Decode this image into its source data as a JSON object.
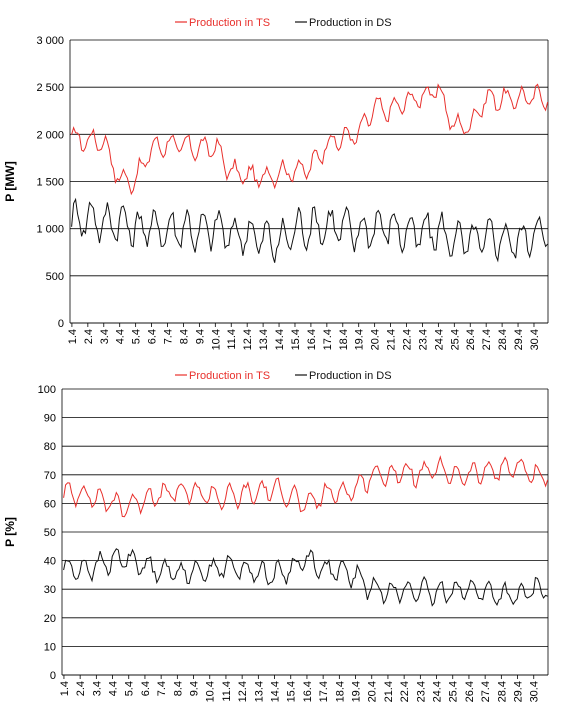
{
  "colors": {
    "ts": "#e8302c",
    "ds": "#111111",
    "grid": "#000000"
  },
  "chart_data": [
    {
      "type": "line",
      "ylabel": "P [MW]",
      "ylim": [
        0,
        3000
      ],
      "yticks": [
        0,
        500,
        1000,
        1500,
        2000,
        2500,
        3000
      ],
      "ytick_labels": [
        "0",
        "500",
        "1 000",
        "1 500",
        "2 000",
        "2 500",
        "3 000"
      ],
      "grid": true,
      "legend_position": "top-center",
      "x_categories": [
        "1.4",
        "2.4",
        "3.4",
        "4.4",
        "5.4",
        "6.4",
        "7.4",
        "8.4",
        "9.4",
        "10.4",
        "11.4",
        "12.4",
        "13.4",
        "14.4",
        "15.4",
        "16.4",
        "17.4",
        "18.4",
        "19.4",
        "20.4",
        "21.4",
        "22.4",
        "23.4",
        "24.4",
        "25.4",
        "26.4",
        "27.4",
        "28.4",
        "29.4",
        "30.4"
      ],
      "series": [
        {
          "name": "Production in TS",
          "color_key": "ts",
          "values": [
            1960,
            1930,
            1940,
            1520,
            1510,
            1850,
            1900,
            1880,
            1850,
            1870,
            1600,
            1560,
            1540,
            1600,
            1620,
            1650,
            1900,
            1960,
            2000,
            2280,
            2250,
            2350,
            2400,
            2480,
            2080,
            2100,
            2380,
            2370,
            2380,
            2400
          ]
        },
        {
          "name": "Production in DS",
          "color_key": "ds",
          "values": [
            1080,
            1130,
            1060,
            1080,
            1000,
            1020,
            980,
            1010,
            960,
            1020,
            930,
            950,
            900,
            840,
            990,
            1020,
            1030,
            1030,
            950,
            1020,
            1030,
            950,
            960,
            970,
            880,
            870,
            900,
            910,
            850,
            970
          ]
        }
      ]
    },
    {
      "type": "line",
      "ylabel": "P [%]",
      "ylim": [
        0,
        100
      ],
      "yticks": [
        0,
        10,
        20,
        30,
        40,
        50,
        60,
        70,
        80,
        90,
        100
      ],
      "ytick_labels": [
        "0",
        "10",
        "20",
        "30",
        "40",
        "50",
        "60",
        "70",
        "80",
        "90",
        "100"
      ],
      "grid": true,
      "legend_position": "top-center",
      "x_categories": [
        "1.4",
        "2.4",
        "3.4",
        "4.4",
        "5.4",
        "6.4",
        "7.4",
        "8.4",
        "9.4",
        "10.4",
        "11.4",
        "12.4",
        "13.4",
        "14.4",
        "15.4",
        "16.4",
        "17.4",
        "18.4",
        "19.4",
        "20.4",
        "21.4",
        "22.4",
        "23.4",
        "24.4",
        "25.4",
        "26.4",
        "27.4",
        "28.4",
        "29.4",
        "30.4"
      ],
      "series": [
        {
          "name": "Production in TS",
          "color_key": "ts",
          "values": [
            63,
            64,
            62,
            60,
            59,
            62,
            63,
            64,
            64,
            63,
            62,
            63,
            64,
            65,
            63,
            59,
            63,
            64,
            65,
            70,
            70,
            71,
            70,
            72,
            70,
            70,
            71,
            72,
            73,
            70
          ]
        },
        {
          "name": "Production in DS",
          "color_key": "ds",
          "values": [
            37,
            37,
            38,
            40,
            41,
            38,
            37,
            36,
            36,
            37,
            38,
            37,
            36,
            35,
            37,
            41,
            37,
            36,
            35,
            30,
            30,
            29,
            30,
            28,
            30,
            30,
            29,
            28,
            27,
            30
          ]
        }
      ]
    }
  ]
}
